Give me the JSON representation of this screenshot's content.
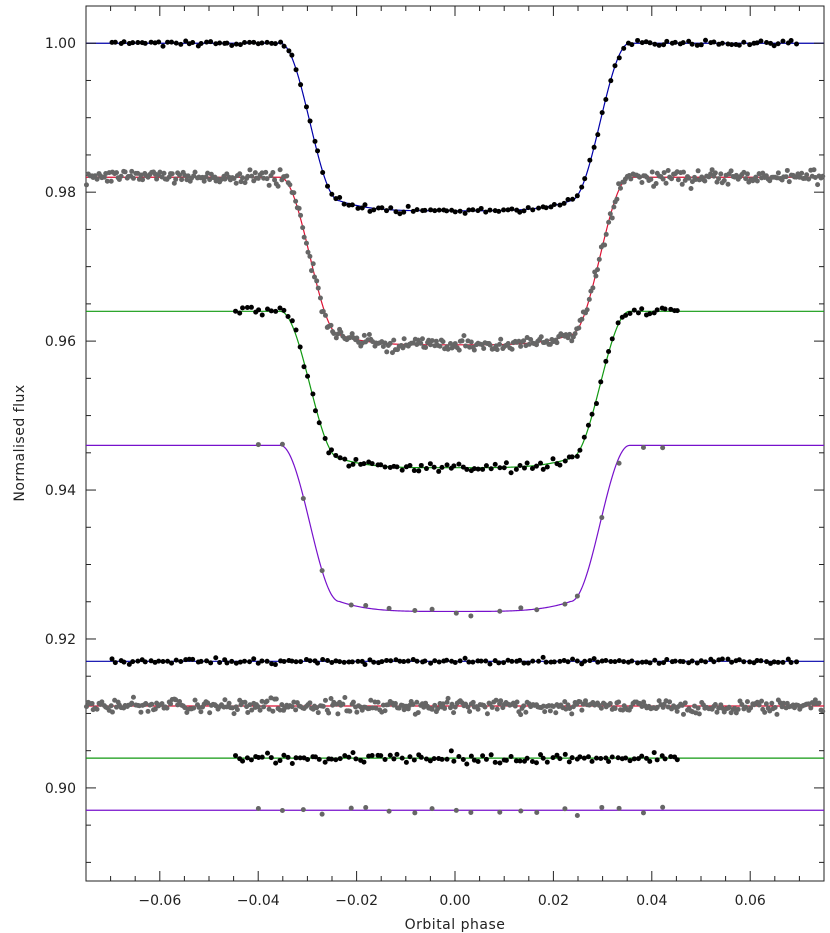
{
  "chart_data": {
    "type": "scatter",
    "xlabel": "Orbital phase",
    "ylabel": "Normalised flux",
    "xlim": [
      -0.075,
      0.075
    ],
    "ylim": [
      0.8875,
      1.005
    ],
    "x_ticks": [
      -0.06,
      -0.04,
      -0.02,
      0.0,
      0.02,
      0.04,
      0.06
    ],
    "x_tick_labels": [
      "−0.06",
      "−0.04",
      "−0.02",
      "0.00",
      "0.02",
      "0.04",
      "0.06"
    ],
    "y_ticks": [
      0.9,
      0.92,
      0.94,
      0.96,
      0.98,
      1.0
    ],
    "y_tick_labels": [
      "0.90",
      "0.92",
      "0.94",
      "0.96",
      "0.98",
      "1.00"
    ],
    "grid": false,
    "series": [
      {
        "color": "#0000aa",
        "point_color": "#000000",
        "offset": 1.0,
        "depth": 0.0225,
        "x_range": [
          -0.07,
          0.07
        ],
        "n_points": 160,
        "scatter": 0.0003,
        "residual_baseline": 0.917,
        "residual_scatter": 0.0003
      },
      {
        "color": "#dd1133",
        "point_color": "#666666",
        "offset": 0.982,
        "depth": 0.0225,
        "x_range": [
          -0.075,
          0.075
        ],
        "n_points": 420,
        "scatter": 0.0008,
        "residual_baseline": 0.911,
        "residual_scatter": 0.0008
      },
      {
        "color": "#119911",
        "point_color": "#000000",
        "offset": 0.964,
        "depth": 0.021,
        "x_range": [
          -0.045,
          0.046
        ],
        "n_points": 110,
        "scatter": 0.0006,
        "residual_baseline": 0.904,
        "residual_scatter": 0.0006
      },
      {
        "color": "#7711cc",
        "point_color": "#666666",
        "offset": 0.946,
        "depth": 0.0223,
        "x_range": [
          -0.04,
          0.046
        ],
        "n_points": 20,
        "scatter": 0.0006,
        "residual_baseline": 0.897,
        "residual_scatter": 0.0005
      }
    ],
    "transit": {
      "contact_outer": 0.0355,
      "contact_inner": 0.0235
    }
  }
}
